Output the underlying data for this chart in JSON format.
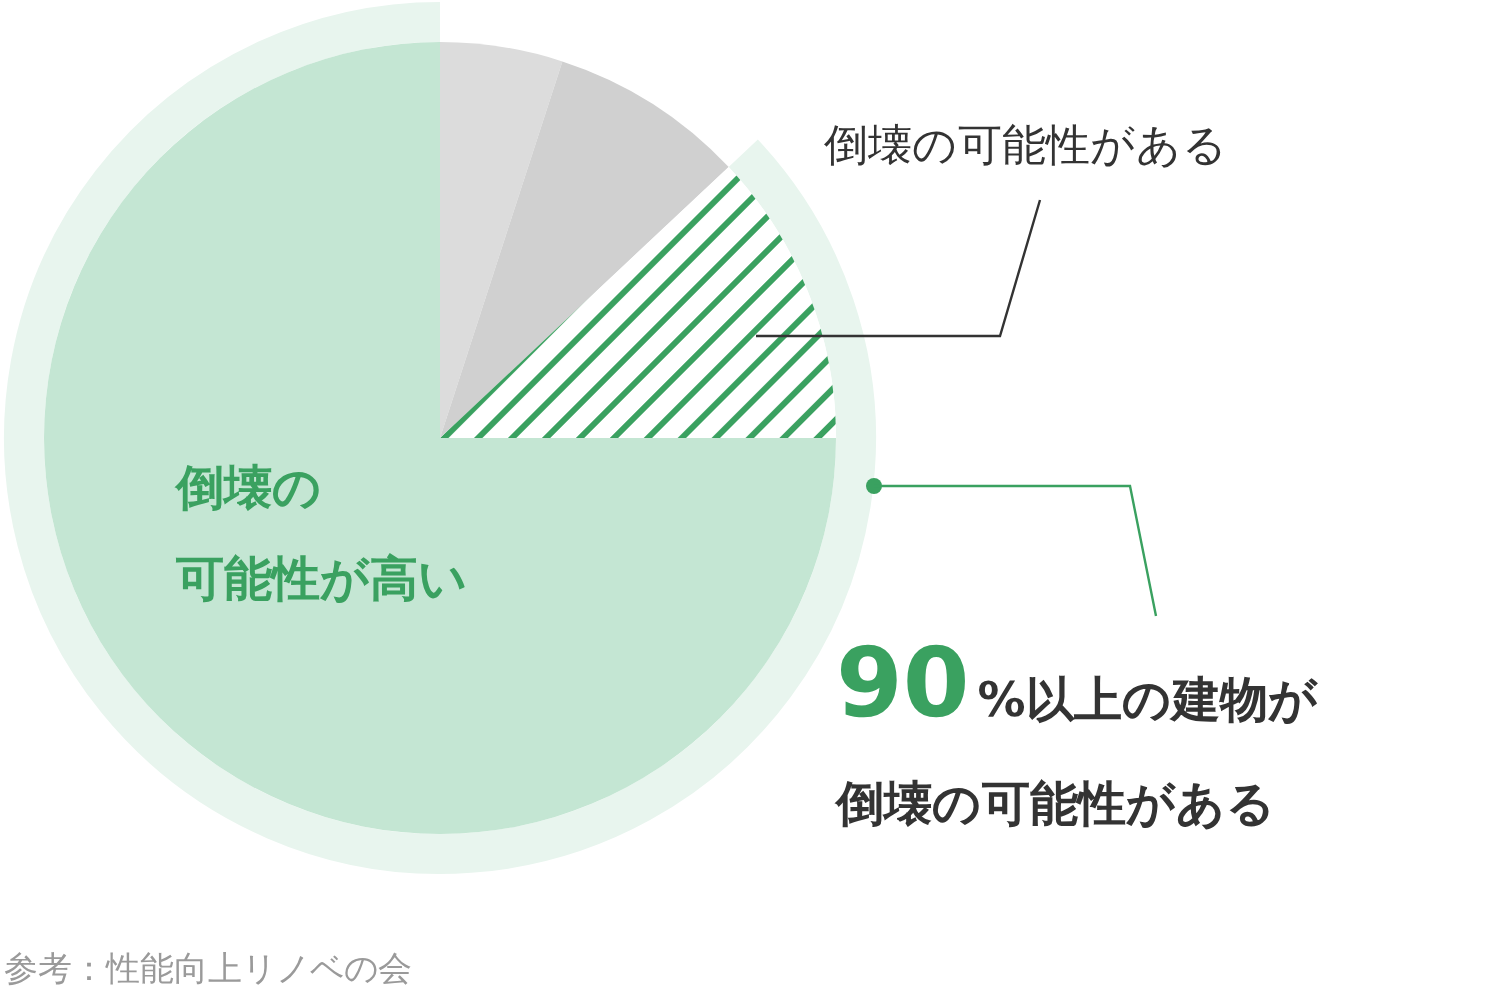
{
  "chart_data": {
    "type": "pie",
    "categories": [
      null,
      null,
      "倒壊の可能性がある",
      "倒壊の可能性が高い"
    ],
    "values": [
      5,
      8,
      12,
      75
    ],
    "colors": [
      "#dcdcdc",
      "#d0d0d0",
      "#3aa160",
      "#c4e6d3"
    ],
    "annotations": [
      "90%以上の建物が",
      "倒壊の可能性がある",
      "参考：性能向上リノベの会"
    ]
  }
}
